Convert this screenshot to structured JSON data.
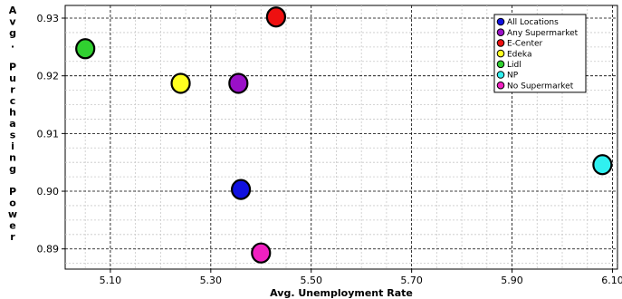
{
  "chart_data": {
    "type": "scatter",
    "title": "",
    "xlabel": "Avg. Unemployment Rate",
    "ylabel": "Avg. Purchasing Power",
    "xlim": [
      5.01,
      6.11
    ],
    "ylim": [
      0.8865,
      0.9322
    ],
    "x_ticks": [
      "5.10",
      "5.30",
      "5.50",
      "5.70",
      "5.90",
      "6.10"
    ],
    "y_ticks": [
      "0.89",
      "0.90",
      "0.91",
      "0.92",
      "0.93"
    ],
    "grid": true,
    "legend_position": "top-right",
    "series": [
      {
        "name": "All Locations",
        "color": "#1010e0",
        "x": 5.36,
        "y": 0.9003
      },
      {
        "name": "Any Supermarket",
        "color": "#9a10c8",
        "x": 5.355,
        "y": 0.9187
      },
      {
        "name": "E-Center",
        "color": "#ee1010",
        "x": 5.43,
        "y": 0.9302
      },
      {
        "name": "Edeka",
        "color": "#ffff20",
        "x": 5.24,
        "y": 0.9187
      },
      {
        "name": "Lidl",
        "color": "#30d030",
        "x": 5.05,
        "y": 0.9247
      },
      {
        "name": "NP",
        "color": "#30f0f0",
        "x": 6.08,
        "y": 0.9046
      },
      {
        "name": "No Supermarket",
        "color": "#f020c0",
        "x": 5.4,
        "y": 0.8893
      }
    ]
  }
}
